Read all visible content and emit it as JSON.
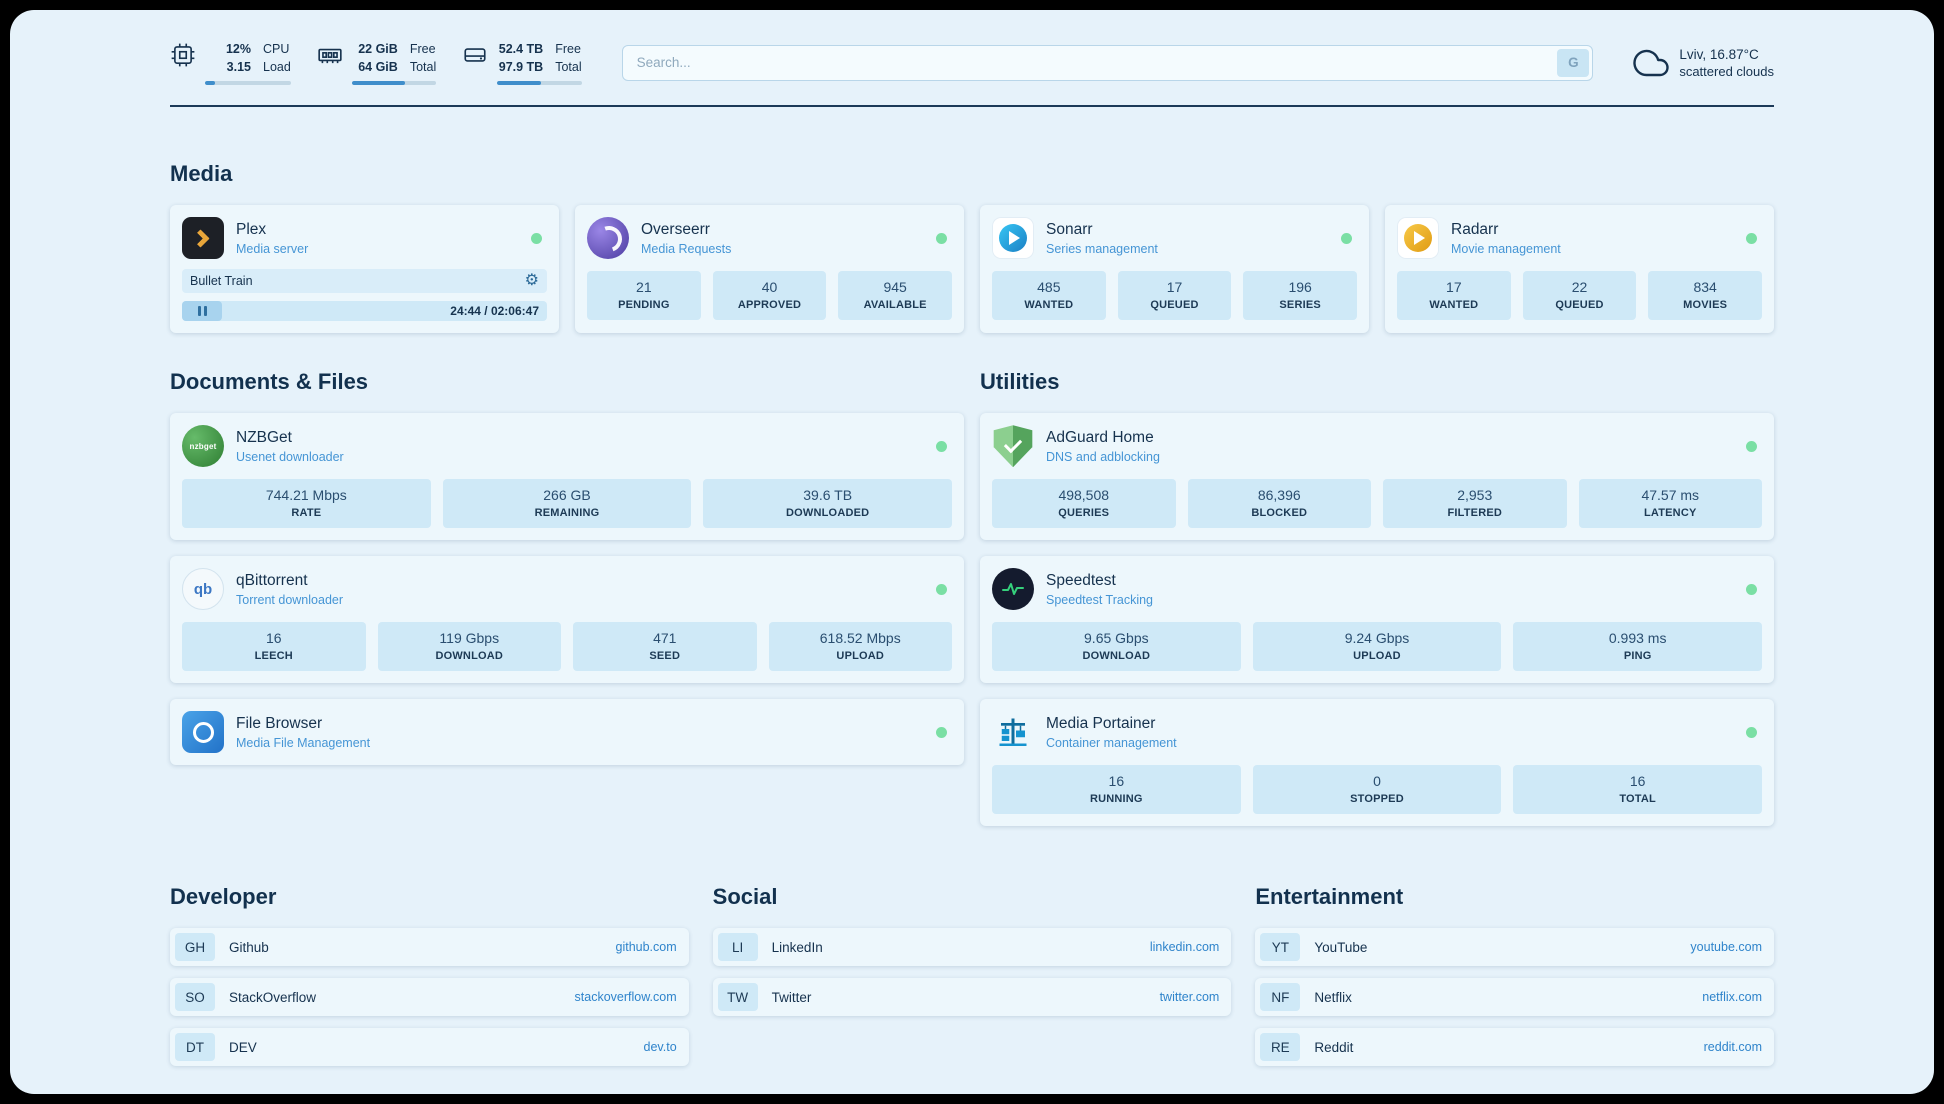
{
  "theme": {
    "page_background": "#e6f2fa",
    "card_background": "#edf7fc",
    "tile_background": "#cfe9f7",
    "text_primary": "#16324e",
    "accent_blue": "#2f84cb",
    "status_online_green": "#7adfa4",
    "progress_fill": "#3f8ecb"
  },
  "topbar": {
    "cpu": {
      "value_top": "12%",
      "value_bottom": "3.15",
      "label_top": "CPU",
      "label_bottom": "Load",
      "bar_percent": 12
    },
    "ram": {
      "value_top": "22 GiB",
      "value_bottom": "64 GiB",
      "label_top": "Free",
      "label_bottom": "Total",
      "bar_percent": 63
    },
    "disk": {
      "value_top": "52.4 TB",
      "value_bottom": "97.9 TB",
      "label_top": "Free",
      "label_bottom": "Total",
      "bar_percent": 52
    },
    "search": {
      "placeholder": "Search...",
      "button_label": "G"
    },
    "weather": {
      "location": "Lviv, 16.87°C",
      "condition": "scattered clouds"
    }
  },
  "icon_glyphs": {
    "nzbget": "nzbget",
    "qbittorrent": "qb"
  },
  "sections": {
    "media": {
      "title": "Media",
      "plex": {
        "name": "Plex",
        "subtitle": "Media server",
        "now_playing": "Bullet Train",
        "time": "24:44 / 02:06:47"
      },
      "overseerr": {
        "name": "Overseerr",
        "subtitle": "Media Requests",
        "stats": [
          {
            "value": "21",
            "label": "PENDING"
          },
          {
            "value": "40",
            "label": "APPROVED"
          },
          {
            "value": "945",
            "label": "AVAILABLE"
          }
        ]
      },
      "sonarr": {
        "name": "Sonarr",
        "subtitle": "Series management",
        "stats": [
          {
            "value": "485",
            "label": "WANTED"
          },
          {
            "value": "17",
            "label": "QUEUED"
          },
          {
            "value": "196",
            "label": "SERIES"
          }
        ]
      },
      "radarr": {
        "name": "Radarr",
        "subtitle": "Movie management",
        "stats": [
          {
            "value": "17",
            "label": "WANTED"
          },
          {
            "value": "22",
            "label": "QUEUED"
          },
          {
            "value": "834",
            "label": "MOVIES"
          }
        ]
      }
    },
    "documents": {
      "title": "Documents & Files",
      "nzbget": {
        "name": "NZBGet",
        "subtitle": "Usenet downloader",
        "stats": [
          {
            "value": "744.21 Mbps",
            "label": "RATE"
          },
          {
            "value": "266 GB",
            "label": "REMAINING"
          },
          {
            "value": "39.6 TB",
            "label": "DOWNLOADED"
          }
        ]
      },
      "qbittorrent": {
        "name": "qBittorrent",
        "subtitle": "Torrent downloader",
        "stats": [
          {
            "value": "16",
            "label": "LEECH"
          },
          {
            "value": "119 Gbps",
            "label": "DOWNLOAD"
          },
          {
            "value": "471",
            "label": "SEED"
          },
          {
            "value": "618.52 Mbps",
            "label": "UPLOAD"
          }
        ]
      },
      "filebrowser": {
        "name": "File Browser",
        "subtitle": "Media File Management"
      }
    },
    "utilities": {
      "title": "Utilities",
      "adguard": {
        "name": "AdGuard Home",
        "subtitle": "DNS and adblocking",
        "stats": [
          {
            "value": "498,508",
            "label": "QUERIES"
          },
          {
            "value": "86,396",
            "label": "BLOCKED"
          },
          {
            "value": "2,953",
            "label": "FILTERED"
          },
          {
            "value": "47.57 ms",
            "label": "LATENCY"
          }
        ]
      },
      "speedtest": {
        "name": "Speedtest",
        "subtitle": "Speedtest Tracking",
        "stats": [
          {
            "value": "9.65 Gbps",
            "label": "DOWNLOAD"
          },
          {
            "value": "9.24 Gbps",
            "label": "UPLOAD"
          },
          {
            "value": "0.993 ms",
            "label": "PING"
          }
        ]
      },
      "portainer": {
        "name": "Media Portainer",
        "subtitle": "Container management",
        "stats": [
          {
            "value": "16",
            "label": "RUNNING"
          },
          {
            "value": "0",
            "label": "STOPPED"
          },
          {
            "value": "16",
            "label": "TOTAL"
          }
        ]
      }
    }
  },
  "bookmarks": {
    "groups": [
      {
        "title": "Developer",
        "items": [
          {
            "abbr": "GH",
            "name": "Github",
            "url": "github.com"
          },
          {
            "abbr": "SO",
            "name": "StackOverflow",
            "url": "stackoverflow.com"
          },
          {
            "abbr": "DT",
            "name": "DEV",
            "url": "dev.to"
          }
        ]
      },
      {
        "title": "Social",
        "items": [
          {
            "abbr": "LI",
            "name": "LinkedIn",
            "url": "linkedin.com"
          },
          {
            "abbr": "TW",
            "name": "Twitter",
            "url": "twitter.com"
          }
        ]
      },
      {
        "title": "Entertainment",
        "items": [
          {
            "abbr": "YT",
            "name": "YouTube",
            "url": "youtube.com"
          },
          {
            "abbr": "NF",
            "name": "Netflix",
            "url": "netflix.com"
          },
          {
            "abbr": "RE",
            "name": "Reddit",
            "url": "reddit.com"
          }
        ]
      }
    ]
  }
}
